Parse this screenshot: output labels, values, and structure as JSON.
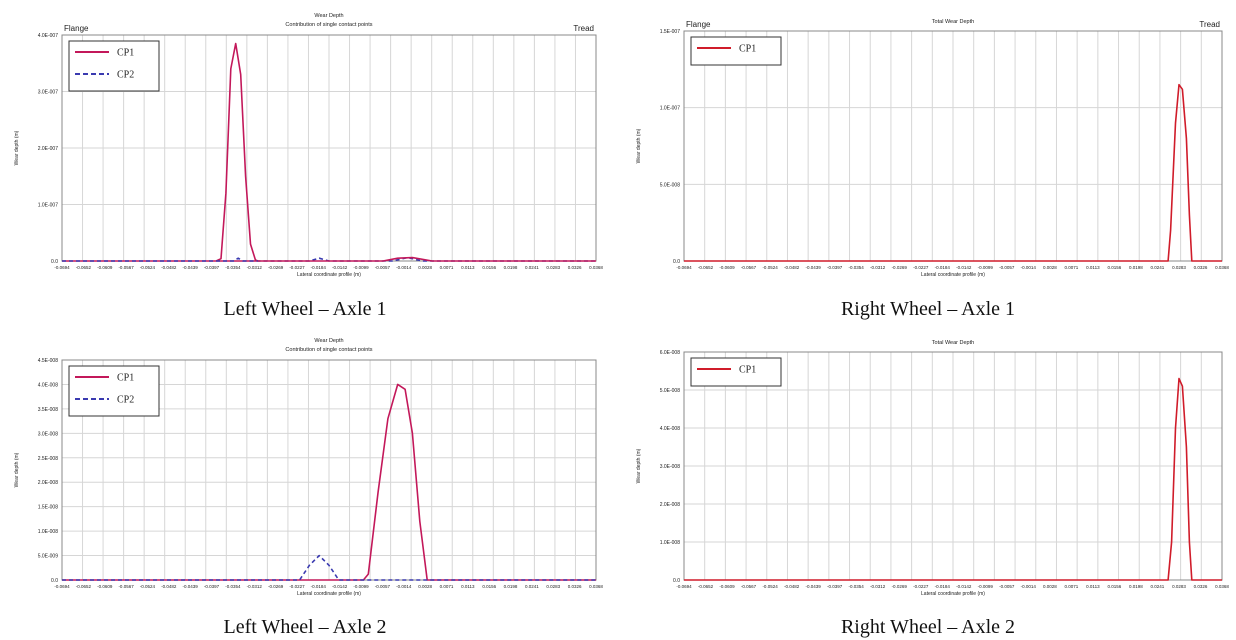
{
  "captions": [
    "Left Wheel – Axle 1",
    "Right Wheel – Axle 1",
    "Left Wheel – Axle 2",
    "Right Wheel – Axle 2"
  ],
  "chart_data": [
    {
      "type": "line",
      "title": "Wear Depth",
      "subtitle": "Contribution of single contact points",
      "corner_left": "Flange",
      "corner_right": "Tread",
      "xlabel": "Lateral coordinate profile (m)",
      "ylabel": "Wear depth (m)",
      "xlim": [
        -0.0694,
        0.0394
      ],
      "ylim": [
        0,
        4e-07
      ],
      "yticks": [
        "0.0",
        "1.0E-007",
        "2.0E-007",
        "3.0E-007",
        "4.0E-007"
      ],
      "legend_position": "top-left",
      "colors": {
        "CP1": "#c3185a",
        "CP2": "#3a3ab0"
      },
      "series": [
        {
          "name": "CP1",
          "style": "solid",
          "x": [
            -0.0694,
            -0.038,
            -0.037,
            -0.036,
            -0.035,
            -0.034,
            -0.033,
            -0.032,
            -0.031,
            -0.03,
            -0.0295,
            -0.0694
          ],
          "y": [
            0,
            0,
            4e-09,
            1.2e-07,
            3.4e-07,
            3.85e-07,
            3.3e-07,
            1.5e-07,
            3e-08,
            2e-09,
            0,
            0
          ]
        },
        {
          "name": "CP2",
          "style": "dashed",
          "x": [
            -0.0694,
            -0.0345,
            -0.0335,
            -0.0325,
            -0.019,
            -0.017,
            -0.015,
            -0.002,
            0.001,
            0.004,
            0.0394
          ],
          "y": [
            0,
            0,
            5e-09,
            0,
            0,
            5e-09,
            0,
            0,
            6e-09,
            0,
            0
          ]
        },
        {
          "name": "CP1",
          "style": "solid",
          "x": [
            -0.0295,
            -0.004,
            -0.001,
            0.002,
            0.006,
            0.0394
          ],
          "y": [
            0,
            0,
            5e-09,
            6e-09,
            0,
            0
          ]
        }
      ]
    },
    {
      "type": "line",
      "title": "Total Wear Depth",
      "corner_left": "Flange",
      "corner_right": "Tread",
      "xlabel": "Lateral coordinate profile (m)",
      "ylabel": "Wear depth (m)",
      "xlim": [
        -0.0694,
        0.0394
      ],
      "ylim": [
        0,
        1.5e-07
      ],
      "yticks": [
        "0.0",
        "5.0E-008",
        "1.0E-007",
        "1.5E-007"
      ],
      "legend_position": "top-left",
      "colors": {
        "CP1": "#d01c2a"
      },
      "series": [
        {
          "name": "CP1",
          "style": "solid",
          "x": [
            -0.0694,
            0.0285,
            0.029,
            0.03,
            0.0307,
            0.0314,
            0.0322,
            0.0328,
            0.0333,
            0.0394
          ],
          "y": [
            0,
            0,
            2e-08,
            9e-08,
            1.15e-07,
            1.12e-07,
            8e-08,
            3e-08,
            0,
            0
          ]
        }
      ]
    },
    {
      "type": "line",
      "title": "Wear Depth",
      "subtitle": "Contribution of single contact points",
      "xlabel": "Lateral coordinate profile (m)",
      "ylabel": "Wear depth (m)",
      "xlim": [
        -0.0694,
        0.0394
      ],
      "ylim": [
        0,
        4.5e-08
      ],
      "yticks": [
        "0.0",
        "5.0E-009",
        "1.0E-008",
        "1.5E-008",
        "2.0E-008",
        "2.5E-008",
        "3.0E-008",
        "3.5E-008",
        "4.0E-008",
        "4.5E-008"
      ],
      "legend_position": "top-left",
      "colors": {
        "CP1": "#c3185a",
        "CP2": "#3a3ab0"
      },
      "series": [
        {
          "name": "CP1",
          "style": "solid",
          "x": [
            -0.0694,
            -0.008,
            -0.007,
            -0.005,
            -0.003,
            -0.001,
            0.0005,
            0.002,
            0.0035,
            0.005,
            0.0394
          ],
          "y": [
            0,
            0,
            1.2e-09,
            1.8e-08,
            3.3e-08,
            4e-08,
            3.9e-08,
            3e-08,
            1.2e-08,
            0,
            0
          ]
        },
        {
          "name": "CP2",
          "style": "dashed",
          "x": [
            -0.0694,
            -0.021,
            -0.019,
            -0.017,
            -0.015,
            -0.013,
            0.0394
          ],
          "y": [
            0,
            0,
            3e-09,
            5e-09,
            3e-09,
            0,
            0
          ]
        }
      ]
    },
    {
      "type": "line",
      "title": "Total Wear Depth",
      "xlabel": "Lateral coordinate profile (m)",
      "ylabel": "Wear depth (m)",
      "xlim": [
        -0.0694,
        0.0394
      ],
      "ylim": [
        0,
        6e-08
      ],
      "yticks": [
        "0.0",
        "1.0E-008",
        "2.0E-008",
        "3.0E-008",
        "4.0E-008",
        "5.0E-008",
        "6.0E-008"
      ],
      "legend_position": "top-left",
      "colors": {
        "CP1": "#d01c2a"
      },
      "series": [
        {
          "name": "CP1",
          "style": "solid",
          "x": [
            -0.0694,
            0.0285,
            0.0292,
            0.03,
            0.0307,
            0.0314,
            0.0322,
            0.0328,
            0.0333,
            0.0394
          ],
          "y": [
            0,
            0,
            1e-08,
            4e-08,
            5.3e-08,
            5.1e-08,
            3.5e-08,
            1e-08,
            0,
            0
          ]
        }
      ]
    }
  ]
}
